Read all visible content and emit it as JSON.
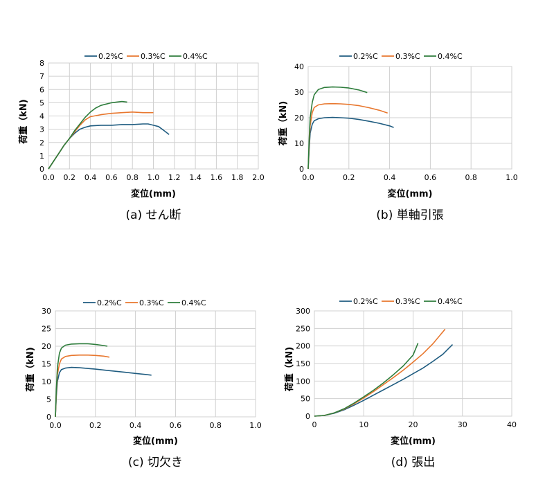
{
  "chart_data": [
    {
      "id": "a",
      "type": "line",
      "caption": "(a) せん断",
      "xlabel": "変位(mm)",
      "ylabel": "荷重（kN)",
      "xlim": [
        0,
        2.0
      ],
      "ylim": [
        0,
        8
      ],
      "xticks": [
        "0.0",
        "0.2",
        "0.4",
        "0.6",
        "0.8",
        "1.0",
        "1.2",
        "1.4",
        "1.6",
        "1.8",
        "2.0"
      ],
      "yticks": [
        "0",
        "1",
        "2",
        "3",
        "4",
        "5",
        "6",
        "7",
        "8"
      ],
      "grid": true,
      "legend_position": "top",
      "series": [
        {
          "name": "0.2%C",
          "color": "#1f5c80",
          "x": [
            0,
            0.05,
            0.1,
            0.15,
            0.2,
            0.25,
            0.3,
            0.35,
            0.4,
            0.5,
            0.6,
            0.7,
            0.8,
            0.9,
            0.95,
            1.0,
            1.05,
            1.1,
            1.15
          ],
          "y": [
            0,
            0.6,
            1.2,
            1.8,
            2.3,
            2.7,
            3.0,
            3.15,
            3.25,
            3.3,
            3.3,
            3.35,
            3.35,
            3.4,
            3.4,
            3.3,
            3.2,
            2.9,
            2.6
          ]
        },
        {
          "name": "0.3%C",
          "color": "#e8772e",
          "x": [
            0,
            0.05,
            0.1,
            0.15,
            0.2,
            0.25,
            0.3,
            0.35,
            0.4,
            0.5,
            0.6,
            0.7,
            0.8,
            0.9,
            1.0
          ],
          "y": [
            0,
            0.6,
            1.2,
            1.8,
            2.3,
            2.8,
            3.3,
            3.7,
            3.95,
            4.1,
            4.2,
            4.25,
            4.3,
            4.25,
            4.25
          ]
        },
        {
          "name": "0.4%C",
          "color": "#2e7d3c",
          "x": [
            0,
            0.05,
            0.1,
            0.15,
            0.2,
            0.25,
            0.3,
            0.35,
            0.4,
            0.45,
            0.5,
            0.55,
            0.6,
            0.65,
            0.7,
            0.75
          ],
          "y": [
            0,
            0.6,
            1.2,
            1.8,
            2.3,
            2.9,
            3.4,
            3.9,
            4.3,
            4.6,
            4.8,
            4.9,
            5.0,
            5.05,
            5.1,
            5.05
          ]
        }
      ]
    },
    {
      "id": "b",
      "type": "line",
      "caption": "(b) 単軸引張",
      "xlabel": "変位(mm)",
      "ylabel": "荷重（kN)",
      "xlim": [
        0,
        1.0
      ],
      "ylim": [
        0,
        40
      ],
      "xticks": [
        "0.0",
        "0.2",
        "0.4",
        "0.6",
        "0.8",
        "1.0"
      ],
      "yticks": [
        "0",
        "10",
        "20",
        "30",
        "40"
      ],
      "grid": true,
      "legend_position": "top",
      "series": [
        {
          "name": "0.2%C",
          "color": "#1f5c80",
          "x": [
            0,
            0.005,
            0.01,
            0.02,
            0.03,
            0.05,
            0.08,
            0.12,
            0.16,
            0.2,
            0.25,
            0.3,
            0.35,
            0.4,
            0.42
          ],
          "y": [
            0,
            8,
            14,
            17.5,
            18.8,
            19.6,
            20.0,
            20.1,
            20.0,
            19.8,
            19.3,
            18.6,
            17.8,
            16.8,
            16.2
          ]
        },
        {
          "name": "0.3%C",
          "color": "#e8772e",
          "x": [
            0,
            0.005,
            0.01,
            0.02,
            0.03,
            0.05,
            0.08,
            0.12,
            0.16,
            0.2,
            0.25,
            0.3,
            0.35,
            0.39
          ],
          "y": [
            0,
            10,
            17,
            22,
            24,
            25.0,
            25.4,
            25.5,
            25.4,
            25.2,
            24.7,
            23.9,
            22.9,
            21.8
          ]
        },
        {
          "name": "0.4%C",
          "color": "#2e7d3c",
          "x": [
            0,
            0.005,
            0.01,
            0.02,
            0.03,
            0.05,
            0.08,
            0.12,
            0.16,
            0.2,
            0.25,
            0.29
          ],
          "y": [
            0,
            12,
            20,
            26,
            29,
            31,
            31.8,
            32.0,
            31.9,
            31.6,
            30.8,
            29.8
          ]
        }
      ]
    },
    {
      "id": "c",
      "type": "line",
      "caption": "(c) 切欠き",
      "xlabel": "変位(mm)",
      "ylabel": "荷重（kN)",
      "xlim": [
        0,
        1.0
      ],
      "ylim": [
        0,
        30
      ],
      "xticks": [
        "0.0",
        "0.2",
        "0.4",
        "0.6",
        "0.8",
        "1.0"
      ],
      "yticks": [
        "0",
        "5",
        "10",
        "15",
        "20",
        "25",
        "30"
      ],
      "grid": true,
      "legend_position": "top",
      "series": [
        {
          "name": "0.2%C",
          "color": "#1f5c80",
          "x": [
            0,
            0.005,
            0.01,
            0.02,
            0.03,
            0.05,
            0.08,
            0.12,
            0.16,
            0.2,
            0.25,
            0.3,
            0.35,
            0.4,
            0.45,
            0.48
          ],
          "y": [
            0,
            6,
            10,
            12.5,
            13.4,
            13.8,
            14.0,
            13.9,
            13.7,
            13.5,
            13.2,
            12.9,
            12.6,
            12.3,
            12.0,
            11.8
          ]
        },
        {
          "name": "0.3%C",
          "color": "#e8772e",
          "x": [
            0,
            0.005,
            0.01,
            0.02,
            0.03,
            0.05,
            0.08,
            0.12,
            0.16,
            0.2,
            0.24,
            0.27
          ],
          "y": [
            0,
            7,
            12,
            15,
            16.4,
            17.1,
            17.4,
            17.5,
            17.5,
            17.4,
            17.2,
            16.9
          ]
        },
        {
          "name": "0.4%C",
          "color": "#2e7d3c",
          "x": [
            0,
            0.005,
            0.01,
            0.02,
            0.03,
            0.05,
            0.08,
            0.12,
            0.16,
            0.2,
            0.24,
            0.26
          ],
          "y": [
            0,
            8,
            14,
            18,
            19.5,
            20.3,
            20.6,
            20.7,
            20.7,
            20.5,
            20.2,
            20.0
          ]
        }
      ]
    },
    {
      "id": "d",
      "type": "line",
      "caption": "(d) 張出",
      "xlabel": "変位(mm)",
      "ylabel": "荷重（kN)",
      "xlim": [
        0,
        40
      ],
      "ylim": [
        0,
        300
      ],
      "xticks": [
        "0",
        "10",
        "20",
        "30",
        "40"
      ],
      "yticks": [
        "0",
        "50",
        "100",
        "150",
        "200",
        "250",
        "300"
      ],
      "grid": true,
      "legend_position": "top",
      "series": [
        {
          "name": "0.2%C",
          "color": "#1f5c80",
          "x": [
            0,
            2,
            4,
            6,
            8,
            10,
            12,
            14,
            16,
            18,
            20,
            22,
            24,
            26,
            28
          ],
          "y": [
            0,
            2,
            8,
            18,
            31,
            45,
            60,
            75,
            90,
            105,
            121,
            137,
            156,
            176,
            204
          ]
        },
        {
          "name": "0.3%C",
          "color": "#e8772e",
          "x": [
            0,
            2,
            4,
            6,
            8,
            10,
            12,
            14,
            16,
            18,
            20,
            22,
            24,
            26.5
          ],
          "y": [
            0,
            2,
            9,
            20,
            35,
            52,
            70,
            90,
            110,
            131,
            154,
            178,
            206,
            248
          ]
        },
        {
          "name": "0.4%C",
          "color": "#2e7d3c",
          "x": [
            0,
            2,
            4,
            6,
            8,
            10,
            12,
            14,
            16,
            18,
            20,
            21
          ],
          "y": [
            0,
            2,
            9,
            21,
            37,
            55,
            74,
            95,
            118,
            143,
            174,
            208
          ]
        }
      ]
    }
  ]
}
